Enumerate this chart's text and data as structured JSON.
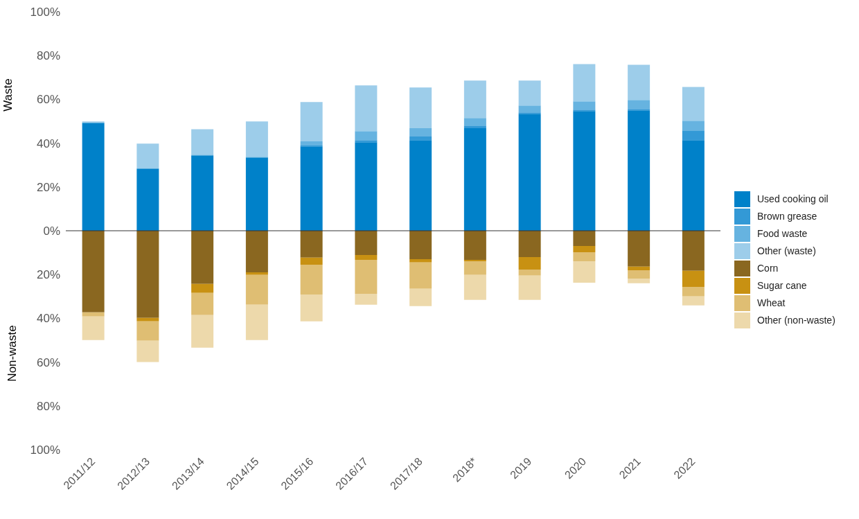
{
  "chart_data": {
    "type": "bar",
    "stacked": true,
    "ylabel": "Waste",
    "annotations": [
      "Non-waste"
    ],
    "categories": [
      "2011/12",
      "2012/13",
      "2013/14",
      "2014/15",
      "2015/16",
      "2016/17",
      "2017/18",
      "2018*",
      "2019",
      "2020",
      "2021",
      "2022"
    ],
    "series": [
      {
        "name": "Used cooking oil",
        "color": "#0081c9",
        "values": [
          49.3,
          28.4,
          34.4,
          33.5,
          38.5,
          40.4,
          41.4,
          46.8,
          53.4,
          54.7,
          55.0,
          41.4
        ]
      },
      {
        "name": "Brown grease",
        "color": "#3399d6",
        "values": [
          0,
          0,
          0,
          0,
          0.4,
          1.0,
          1.6,
          1.2,
          0.6,
          0.6,
          0.6,
          4.4
        ]
      },
      {
        "name": "Food waste",
        "color": "#66b3e0",
        "values": [
          0,
          0,
          0.3,
          0.3,
          1.9,
          4.1,
          3.8,
          3.5,
          3.2,
          3.8,
          4.1,
          4.4
        ]
      },
      {
        "name": "Other (waste)",
        "color": "#9dcdea",
        "values": [
          0.6,
          11.4,
          11.7,
          16.1,
          18.0,
          20.9,
          18.6,
          17.1,
          11.4,
          17.0,
          16.1,
          15.5
        ]
      },
      {
        "name": "Corn",
        "color": "#8a6720",
        "values": [
          -37.3,
          -39.8,
          -24.3,
          -19.0,
          -12.3,
          -11.1,
          -13.0,
          -13.3,
          -12.0,
          -7.0,
          -16.4,
          -18.3
        ]
      },
      {
        "name": "Sugar cane",
        "color": "#c89112",
        "values": [
          0,
          -1.6,
          -4.1,
          -1.2,
          -3.2,
          -2.2,
          -1.5,
          -0.6,
          -5.7,
          -2.8,
          -1.6,
          -7.3
        ]
      },
      {
        "name": "Wheat",
        "color": "#dfbe73",
        "values": [
          -1.9,
          -8.8,
          -10.1,
          -13.6,
          -13.6,
          -15.5,
          -12.0,
          -6.3,
          -2.8,
          -4.1,
          -3.8,
          -4.4
        ]
      },
      {
        "name": "Other (non-waste)",
        "color": "#edd9ab",
        "values": [
          -10.7,
          -9.8,
          -14.9,
          -16.1,
          -12.3,
          -5.0,
          -7.9,
          -11.4,
          -11.1,
          -9.8,
          -2.2,
          -4.1
        ]
      }
    ],
    "ylim": [
      -100,
      100
    ],
    "yticks": [
      {
        "value": -100,
        "label": "100%"
      },
      {
        "value": -80,
        "label": "80%"
      },
      {
        "value": -60,
        "label": "60%"
      },
      {
        "value": -40,
        "label": "40%"
      },
      {
        "value": -20,
        "label": "20%"
      },
      {
        "value": 0,
        "label": "0%"
      },
      {
        "value": 20,
        "label": "20%"
      },
      {
        "value": 40,
        "label": "40%"
      },
      {
        "value": 60,
        "label": "60%"
      },
      {
        "value": 80,
        "label": "80%"
      },
      {
        "value": 100,
        "label": "100%"
      }
    ],
    "ref_lines": [
      {
        "axis": "y",
        "value": 0,
        "color": "#333333"
      }
    ],
    "grid": false,
    "legend": "right"
  }
}
